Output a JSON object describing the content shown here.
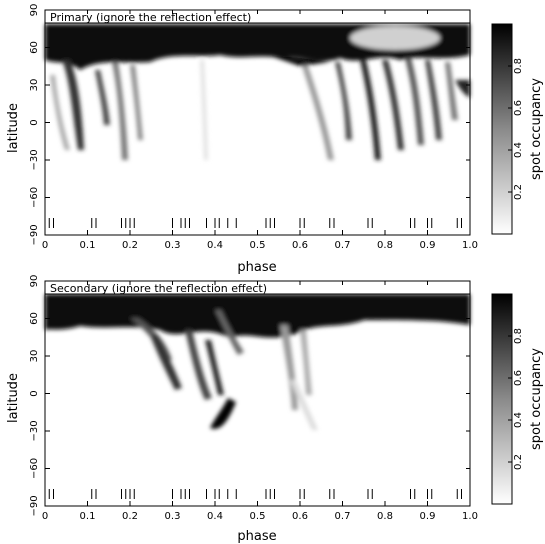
{
  "chart_data": [
    {
      "type": "heatmap",
      "title": "Primary (ignore the reflection effect)",
      "xlabel": "phase",
      "ylabel": "latitude",
      "colorbar_label": "spot occupancy",
      "xlim": [
        0.0,
        1.0
      ],
      "ylim": [
        -90,
        90
      ],
      "xticks": [
        "0",
        "0.1",
        "0.2",
        "0.3",
        "0.4",
        "0.5",
        "0.6",
        "0.7",
        "0.8",
        "0.9",
        "1.0"
      ],
      "yticks": [
        "90",
        "60",
        "30",
        "0",
        "−30",
        "−60",
        "−90"
      ],
      "colorbar_ticks": [
        "0.2",
        "0.4",
        "0.6",
        "0.8"
      ],
      "colorbar_range": [
        0,
        1
      ],
      "observation_phases": [
        0.01,
        0.02,
        0.11,
        0.12,
        0.18,
        0.19,
        0.2,
        0.21,
        0.3,
        0.32,
        0.33,
        0.34,
        0.38,
        0.4,
        0.41,
        0.43,
        0.45,
        0.52,
        0.53,
        0.54,
        0.6,
        0.61,
        0.67,
        0.68,
        0.76,
        0.77,
        0.86,
        0.87,
        0.9,
        0.91,
        0.97,
        0.98
      ],
      "features": [
        {
          "phase": [
            0.0,
            1.0
          ],
          "lat": [
            68,
            90
          ],
          "occupancy": 0.95
        },
        {
          "phase": [
            0.06,
            0.25
          ],
          "lat": [
            -15,
            60
          ],
          "occupancy": 0.6
        },
        {
          "phase": [
            0.64,
            0.98
          ],
          "lat": [
            -20,
            65
          ],
          "occupancy": 0.75
        },
        {
          "phase": [
            0.57,
            0.67
          ],
          "lat": [
            55,
            72
          ],
          "occupancy": 0.9
        }
      ]
    },
    {
      "type": "heatmap",
      "title": "Secondary (ignore the reflection effect)",
      "xlabel": "phase",
      "ylabel": "latitude",
      "colorbar_label": "spot occupancy",
      "xlim": [
        0.0,
        1.0
      ],
      "ylim": [
        -90,
        90
      ],
      "xticks": [
        "0",
        "0.1",
        "0.2",
        "0.3",
        "0.4",
        "0.5",
        "0.6",
        "0.7",
        "0.8",
        "0.9",
        "1.0"
      ],
      "yticks": [
        "90",
        "60",
        "30",
        "0",
        "−30",
        "−60",
        "−90"
      ],
      "colorbar_ticks": [
        "0.2",
        "0.4",
        "0.6",
        "0.8"
      ],
      "colorbar_range": [
        0,
        1
      ],
      "observation_phases": [
        0.01,
        0.02,
        0.11,
        0.12,
        0.18,
        0.19,
        0.2,
        0.21,
        0.3,
        0.32,
        0.33,
        0.34,
        0.38,
        0.4,
        0.41,
        0.43,
        0.45,
        0.52,
        0.53,
        0.54,
        0.6,
        0.61,
        0.67,
        0.68,
        0.76,
        0.77,
        0.86,
        0.87,
        0.9,
        0.91,
        0.97,
        0.98
      ],
      "features": [
        {
          "phase": [
            0.0,
            1.0
          ],
          "lat": [
            65,
            90
          ],
          "occupancy": 0.95
        },
        {
          "phase": [
            0.25,
            0.45
          ],
          "lat": [
            -20,
            60
          ],
          "occupancy": 0.55
        },
        {
          "phase": [
            0.4,
            0.45
          ],
          "lat": [
            -15,
            0
          ],
          "occupancy": 1.0
        },
        {
          "phase": [
            0.56,
            0.66
          ],
          "lat": [
            -20,
            60
          ],
          "occupancy": 0.35
        }
      ]
    }
  ]
}
